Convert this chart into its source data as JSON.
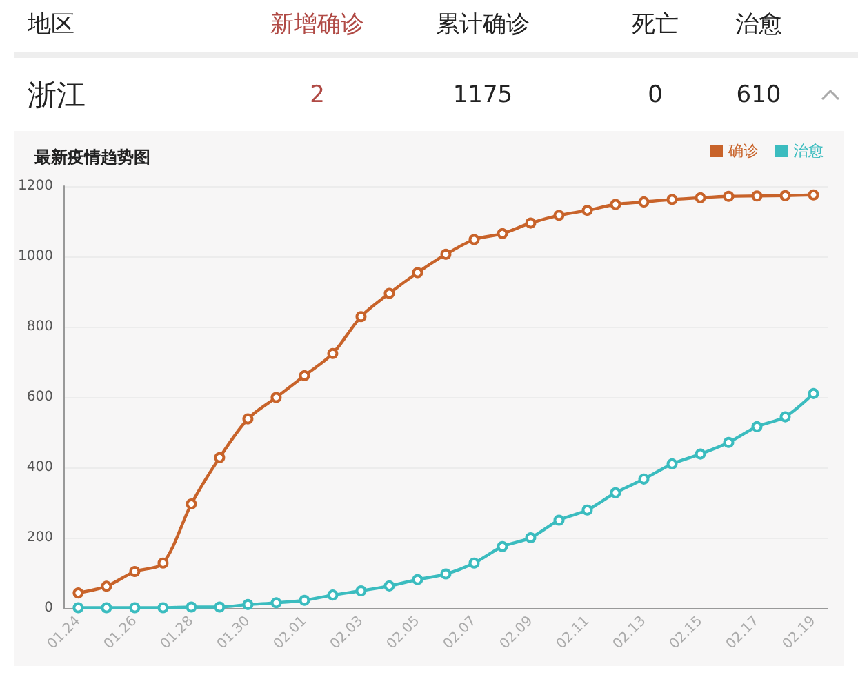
{
  "chart_data": [
    {
      "type": "other",
      "annotations": [
        "地区",
        "新增确诊",
        "累计确诊",
        "死亡",
        "治愈",
        "浙江",
        "2",
        "1175",
        "0",
        "610"
      ]
    },
    {
      "type": "line",
      "title": "最新疫情趋势图",
      "categories": [
        "01.24",
        null,
        "01.26",
        null,
        "01.28",
        null,
        "01.30",
        null,
        "02.01",
        null,
        "02.03",
        null,
        "02.05",
        null,
        "02.07",
        null,
        "02.09",
        null,
        "02.11",
        null,
        "02.13",
        null,
        "02.15",
        null,
        "02.17",
        null,
        "02.19"
      ],
      "series": [
        {
          "name": "确诊",
          "color": "#c8632a",
          "values": [
            43,
            62,
            104,
            128,
            296,
            428,
            538,
            599,
            661,
            724,
            829,
            895,
            954,
            1006,
            1048,
            1065,
            1095,
            1117,
            1131,
            1148,
            1155,
            1162,
            1167,
            1171,
            1172,
            1173,
            1175
          ]
        },
        {
          "name": "治愈",
          "color": "#3bbcbf",
          "values": [
            1,
            1,
            1,
            1,
            3,
            3,
            10,
            15,
            22,
            37,
            49,
            63,
            81,
            97,
            128,
            175,
            200,
            250,
            279,
            328,
            367,
            410,
            438,
            471,
            516,
            544,
            610
          ]
        }
      ],
      "ylim": [
        0,
        1200
      ],
      "yticks": [
        0,
        200,
        400,
        600,
        800,
        1000,
        1200
      ],
      "grid": "y",
      "legend": "top right",
      "marker": "circle",
      "line_style": "solid"
    }
  ]
}
